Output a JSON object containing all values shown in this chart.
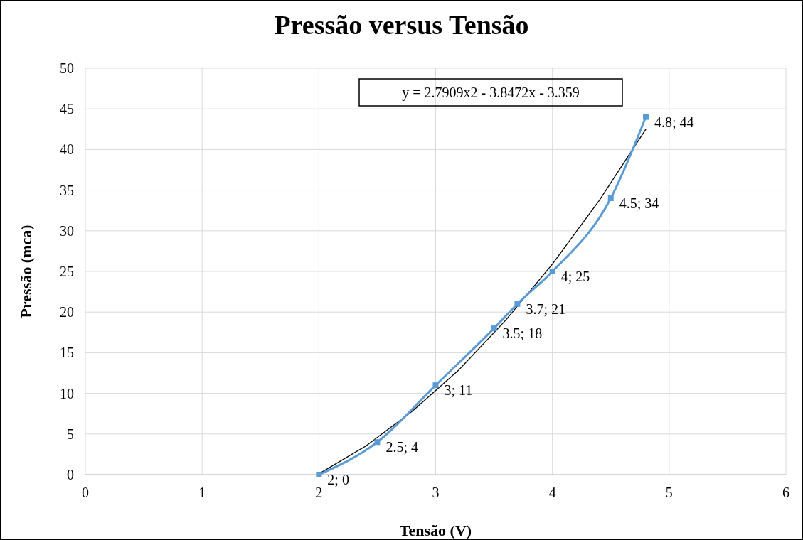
{
  "chart_data": {
    "type": "line",
    "title": "Pressão versus Tensão",
    "xlabel": "Tensão (V)",
    "ylabel": "Pressão (mca)",
    "xlim": [
      0,
      6
    ],
    "xticks": [
      0,
      1,
      2,
      3,
      4,
      5,
      6
    ],
    "ylim": [
      0,
      50
    ],
    "yticks": [
      0,
      5,
      10,
      15,
      20,
      25,
      30,
      35,
      40,
      45,
      50
    ],
    "grid": true,
    "marker": "square",
    "annotations": [
      "y = 2.7909x2 - 3.8472x - 3.359"
    ],
    "series": [
      {
        "color": "#5b9bd5",
        "x": [
          2,
          2.5,
          3,
          3.5,
          3.7,
          4,
          4.5,
          4.8
        ],
        "values": [
          0,
          4,
          11,
          18,
          21,
          25,
          34,
          44
        ],
        "value_labels": [
          "2; 0",
          "2.5; 4",
          "3; 11",
          "3.5; 18",
          "3.7; 21",
          "4; 25",
          "4.5; 34",
          "4.8; 44"
        ]
      },
      {
        "color": "#000000",
        "marker": "none",
        "x": [
          2,
          2.4,
          2.8,
          3.2,
          3.6,
          4,
          4.4,
          4.8
        ],
        "values": [
          0.1,
          3.5,
          7.8,
          12.9,
          19,
          25.9,
          33.7,
          42.5
        ]
      }
    ]
  }
}
